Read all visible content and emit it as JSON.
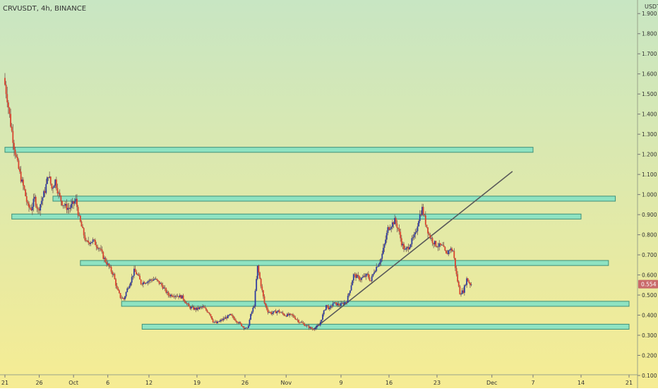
{
  "header": {
    "symbol_label": "CRVUSDT, 4h, BINANCE"
  },
  "colors": {
    "bg_top": "#c8e6c3",
    "bg_bottom": "#f6ec93",
    "zone_fill": "#8ee3c2",
    "zone_stroke": "#3f8f78",
    "trendline": "#5a5a5a",
    "candle_up": "#2f3da0",
    "candle_down": "#d8432e",
    "wick": "#6a4a48",
    "axis_text": "#333333",
    "price_tag_bg": "#c96a6a"
  },
  "chart_data": {
    "type": "candlestick",
    "title": "CRVUSDT, 4h, BINANCE",
    "y_axis": {
      "unit_label": "USDT",
      "scale": "linear",
      "ticks": [
        "1.900",
        "1.800",
        "1.700",
        "1.600",
        "1.500",
        "1.400",
        "1.300",
        "1.200",
        "1.100",
        "1.000",
        "0.900",
        "0.800",
        "0.700",
        "0.600",
        "0.500",
        "0.400",
        "0.300",
        "0.200",
        "0.100"
      ],
      "range": [
        0.1,
        1.95
      ]
    },
    "x_axis": {
      "ticks": [
        "21",
        "26",
        "Oct",
        "6",
        "12",
        "19",
        "26",
        "Nov",
        "9",
        "16",
        "23",
        "Dec",
        "7",
        "14",
        "21"
      ],
      "range": [
        "2020-09-21",
        "2020-12-21"
      ]
    },
    "last_price": "0.554",
    "price_path": [
      [
        "2020-09-21",
        1.58
      ],
      [
        "2020-09-21T12",
        1.48
      ],
      [
        "2020-09-22",
        1.35
      ],
      [
        "2020-09-22T12",
        1.24
      ],
      [
        "2020-09-23",
        1.15
      ],
      [
        "2020-09-23T12",
        1.08
      ],
      [
        "2020-09-24",
        1.02
      ],
      [
        "2020-09-24T12",
        0.94
      ],
      [
        "2020-09-25",
        0.93
      ],
      [
        "2020-09-25T12",
        0.98
      ],
      [
        "2020-09-26",
        0.92
      ],
      [
        "2020-09-27",
        1.02
      ],
      [
        "2020-09-27T12",
        1.1
      ],
      [
        "2020-09-28",
        1.03
      ],
      [
        "2020-09-28T12",
        1.07
      ],
      [
        "2020-09-29",
        1.0
      ],
      [
        "2020-09-29T12",
        0.96
      ],
      [
        "2020-09-30",
        0.94
      ],
      [
        "2020-09-30T12",
        0.93
      ],
      [
        "2020-10-01",
        0.95
      ],
      [
        "2020-10-01T12",
        0.97
      ],
      [
        "2020-10-02",
        0.88
      ],
      [
        "2020-10-02T12",
        0.82
      ],
      [
        "2020-10-03",
        0.76
      ],
      [
        "2020-10-04",
        0.77
      ],
      [
        "2020-10-05",
        0.73
      ],
      [
        "2020-10-05T12",
        0.69
      ],
      [
        "2020-10-06",
        0.66
      ],
      [
        "2020-10-07",
        0.6
      ],
      [
        "2020-10-07T12",
        0.53
      ],
      [
        "2020-10-08",
        0.49
      ],
      [
        "2020-10-08T12",
        0.48
      ],
      [
        "2020-10-09",
        0.53
      ],
      [
        "2020-10-09T12",
        0.57
      ],
      [
        "2020-10-10",
        0.62
      ],
      [
        "2020-10-10T12",
        0.6
      ],
      [
        "2020-10-11",
        0.56
      ],
      [
        "2020-10-12",
        0.57
      ],
      [
        "2020-10-13",
        0.58
      ],
      [
        "2020-10-14",
        0.55
      ],
      [
        "2020-10-15",
        0.5
      ],
      [
        "2020-10-16",
        0.5
      ],
      [
        "2020-10-17",
        0.49
      ],
      [
        "2020-10-18",
        0.44
      ],
      [
        "2020-10-19",
        0.43
      ],
      [
        "2020-10-20",
        0.44
      ],
      [
        "2020-10-21",
        0.41
      ],
      [
        "2020-10-21T12",
        0.37
      ],
      [
        "2020-10-22",
        0.36
      ],
      [
        "2020-10-23",
        0.38
      ],
      [
        "2020-10-24",
        0.4
      ],
      [
        "2020-10-25",
        0.37
      ],
      [
        "2020-10-26",
        0.34
      ],
      [
        "2020-10-26T12",
        0.33
      ],
      [
        "2020-10-27",
        0.4
      ],
      [
        "2020-10-27T12",
        0.45
      ],
      [
        "2020-10-28",
        0.64
      ],
      [
        "2020-10-28T12",
        0.55
      ],
      [
        "2020-10-29",
        0.46
      ],
      [
        "2020-10-29T12",
        0.42
      ],
      [
        "2020-10-30",
        0.41
      ],
      [
        "2020-10-31",
        0.42
      ],
      [
        "2020-11-01",
        0.4
      ],
      [
        "2020-11-02",
        0.4
      ],
      [
        "2020-11-03",
        0.37
      ],
      [
        "2020-11-04",
        0.35
      ],
      [
        "2020-11-05",
        0.33
      ],
      [
        "2020-11-06",
        0.35
      ],
      [
        "2020-11-06T12",
        0.4
      ],
      [
        "2020-11-07",
        0.45
      ],
      [
        "2020-11-07T12",
        0.43
      ],
      [
        "2020-11-08",
        0.46
      ],
      [
        "2020-11-09",
        0.45
      ],
      [
        "2020-11-10",
        0.47
      ],
      [
        "2020-11-10T12",
        0.53
      ],
      [
        "2020-11-11",
        0.6
      ],
      [
        "2020-11-12",
        0.58
      ],
      [
        "2020-11-13",
        0.6
      ],
      [
        "2020-11-13T12",
        0.57
      ],
      [
        "2020-11-14",
        0.62
      ],
      [
        "2020-11-15",
        0.68
      ],
      [
        "2020-11-15T12",
        0.75
      ],
      [
        "2020-11-16",
        0.83
      ],
      [
        "2020-11-17",
        0.87
      ],
      [
        "2020-11-17T12",
        0.83
      ],
      [
        "2020-11-18",
        0.76
      ],
      [
        "2020-11-18T12",
        0.72
      ],
      [
        "2020-11-19",
        0.74
      ],
      [
        "2020-11-20",
        0.8
      ],
      [
        "2020-11-20T12",
        0.88
      ],
      [
        "2020-11-21",
        0.93
      ],
      [
        "2020-11-21T12",
        0.86
      ],
      [
        "2020-11-22",
        0.8
      ],
      [
        "2020-11-22T12",
        0.77
      ],
      [
        "2020-11-23",
        0.75
      ],
      [
        "2020-11-24",
        0.74
      ],
      [
        "2020-11-24T12",
        0.7
      ],
      [
        "2020-11-25",
        0.73
      ],
      [
        "2020-11-25T12",
        0.72
      ],
      [
        "2020-11-26",
        0.6
      ],
      [
        "2020-11-26T12",
        0.51
      ],
      [
        "2020-11-27",
        0.52
      ],
      [
        "2020-11-27T12",
        0.58
      ],
      [
        "2020-11-28",
        0.554
      ]
    ],
    "zones": [
      {
        "x_start": "2020-09-21",
        "x_end": "2020-12-07",
        "low": 1.21,
        "high": 1.235
      },
      {
        "x_start": "2020-09-28",
        "x_end": "2020-12-19",
        "low": 0.967,
        "high": 0.992
      },
      {
        "x_start": "2020-09-22",
        "x_end": "2020-12-14",
        "low": 0.878,
        "high": 0.903
      },
      {
        "x_start": "2020-10-02",
        "x_end": "2020-12-18",
        "low": 0.647,
        "high": 0.672
      },
      {
        "x_start": "2020-10-08",
        "x_end": "2020-12-21",
        "low": 0.444,
        "high": 0.469
      },
      {
        "x_start": "2020-10-11",
        "x_end": "2020-12-21",
        "low": 0.33,
        "high": 0.355
      }
    ],
    "trendline": {
      "x1": "2020-11-05",
      "y1": 0.33,
      "x2": "2020-12-04",
      "y2": 1.115
    }
  }
}
